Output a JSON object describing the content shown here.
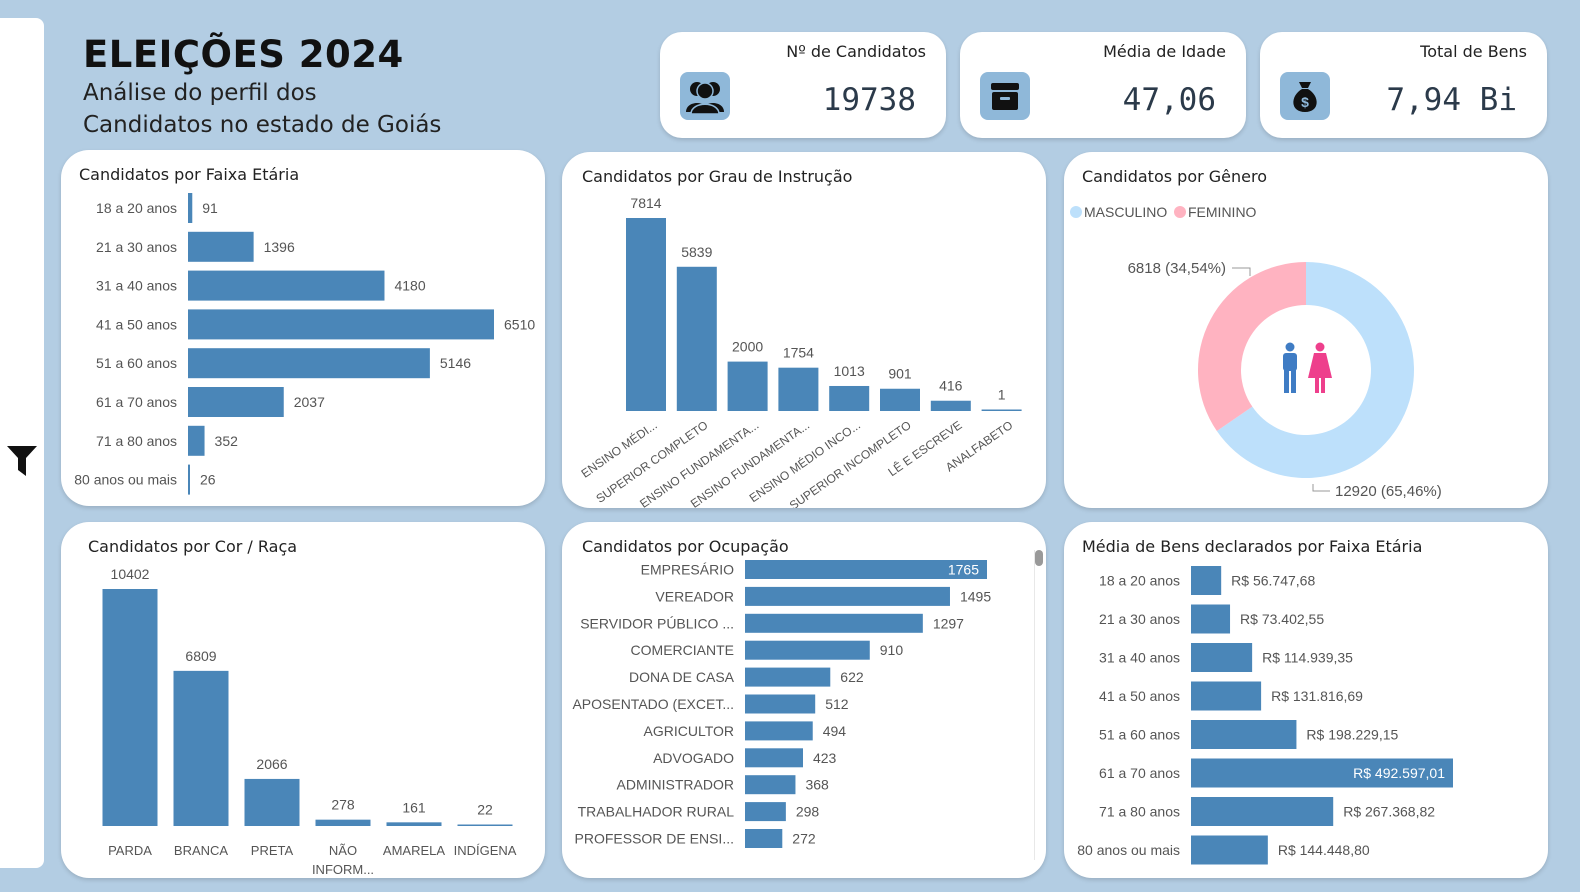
{
  "header": {
    "title": "ELEIÇÕES 2024",
    "subtitle_line1": "Análise do perfil dos",
    "subtitle_line2": "Candidatos no estado de Goiás"
  },
  "kpis": {
    "candidatos": {
      "label": "Nº de Candidatos",
      "value": "19738",
      "icon": "people-icon"
    },
    "idade": {
      "label": "Média de Idade",
      "value": "47,06",
      "icon": "archive-icon"
    },
    "bens": {
      "label": "Total de Bens",
      "value": "7,94 Bi",
      "icon": "money-bag-icon"
    }
  },
  "colors": {
    "bar": "#4a86b8",
    "masculino": "#bde0fb",
    "feminino": "#ffb3c1",
    "male_icon": "#3f7cc4",
    "female_icon": "#ee3f8c"
  },
  "chart_data": [
    {
      "id": "faixa",
      "type": "bar",
      "orientation": "horizontal",
      "title": "Candidatos por Faixa Etária",
      "categories": [
        "18 a 20 anos",
        "21 a 30 anos",
        "31 a 40 anos",
        "41 a 50 anos",
        "51 a 60 anos",
        "61 a 70 anos",
        "71 a 80 anos",
        "80 anos ou mais"
      ],
      "values": [
        91,
        1396,
        4180,
        6510,
        5146,
        2037,
        352,
        26
      ],
      "labels": [
        "91",
        "1396",
        "4180",
        "6510",
        "5146",
        "2037",
        "352",
        "26"
      ]
    },
    {
      "id": "grau",
      "type": "bar",
      "orientation": "vertical",
      "title": "Candidatos por Grau de Instrução",
      "categories": [
        "ENSINO MÉDI...",
        "SUPERIOR COMPLETO",
        "ENSINO FUNDAMENTA...",
        "ENSINO FUNDAMENTA...",
        "ENSINO MÉDIO INCO...",
        "SUPERIOR INCOMPLETO",
        "LÊ E ESCREVE",
        "ANALFABETO"
      ],
      "values": [
        7814,
        5839,
        2000,
        1754,
        1013,
        901,
        416,
        1
      ],
      "labels": [
        "7814",
        "5839",
        "2000",
        "1754",
        "1013",
        "901",
        "416",
        "1"
      ]
    },
    {
      "id": "genero",
      "type": "pie",
      "donut": true,
      "title": "Candidatos por Gênero",
      "categories": [
        "MASCULINO",
        "FEMININO"
      ],
      "values": [
        12920,
        6818
      ],
      "labels": [
        "12920 (65,46%)",
        "6818 (34,54%)"
      ],
      "legend": "top-left"
    },
    {
      "id": "raca",
      "type": "bar",
      "orientation": "vertical",
      "title": "Candidatos por Cor / Raça",
      "categories": [
        "PARDA",
        "BRANCA",
        "PRETA",
        "NÃO INFORM...",
        "AMARELA",
        "INDÍGENA"
      ],
      "values": [
        10402,
        6809,
        2066,
        278,
        161,
        22
      ],
      "labels": [
        "10402",
        "6809",
        "2066",
        "278",
        "161",
        "22"
      ]
    },
    {
      "id": "ocupacao",
      "type": "bar",
      "orientation": "horizontal",
      "title": "Candidatos por Ocupação",
      "categories": [
        "EMPRESÁRIO",
        "VEREADOR",
        "SERVIDOR PÚBLICO ...",
        "COMERCIANTE",
        "DONA DE CASA",
        "APOSENTADO (EXCET...",
        "AGRICULTOR",
        "ADVOGADO",
        "ADMINISTRADOR",
        "TRABALHADOR RURAL",
        "PROFESSOR DE ENSI..."
      ],
      "values": [
        1765,
        1495,
        1297,
        910,
        622,
        512,
        494,
        423,
        368,
        298,
        272
      ],
      "labels": [
        "1765",
        "1495",
        "1297",
        "910",
        "622",
        "512",
        "494",
        "423",
        "368",
        "298",
        "272"
      ]
    },
    {
      "id": "bens",
      "type": "bar",
      "orientation": "horizontal",
      "title": "Média de Bens declarados por Faixa Etária",
      "categories": [
        "18 a 20 anos",
        "21 a 30 anos",
        "31 a 40 anos",
        "41 a 50 anos",
        "51 a 60 anos",
        "61 a 70 anos",
        "71 a 80 anos",
        "80 anos ou mais"
      ],
      "values": [
        56747.68,
        73402.55,
        114939.35,
        131816.69,
        198229.15,
        492597.01,
        267368.82,
        144448.8
      ],
      "labels": [
        "R$ 56.747,68",
        "R$ 73.402,55",
        "R$ 114.939,35",
        "R$ 131.816,69",
        "R$ 198.229,15",
        "R$ 492.597,01",
        "R$ 267.368,82",
        "R$ 144.448,80"
      ]
    }
  ]
}
